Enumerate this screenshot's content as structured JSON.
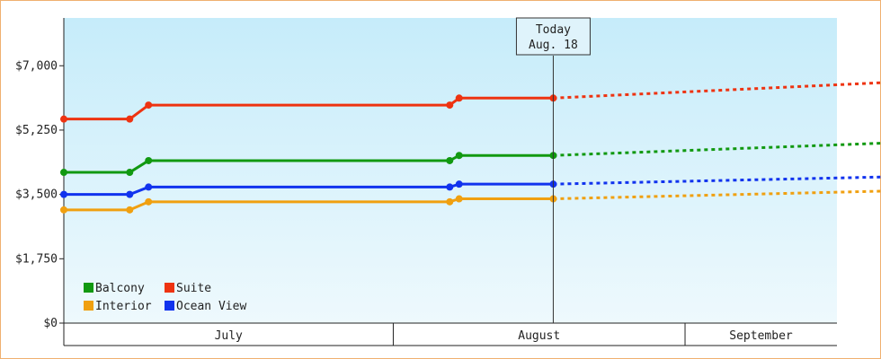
{
  "chart_data": {
    "type": "line",
    "title": "",
    "xlabel": "",
    "ylabel": "",
    "ylim": [
      0,
      8300
    ],
    "y_ticks": [
      0,
      1750,
      3500,
      5250,
      7000
    ],
    "y_tick_labels": [
      "$0",
      "$1,750",
      "$3,500",
      "$5,250",
      "$7,000"
    ],
    "months": [
      "July",
      "August",
      "September"
    ],
    "today": {
      "line1": "Today",
      "line2": "Aug. 18"
    },
    "legend_placement": "bottom-left",
    "grid": false,
    "series": [
      {
        "name": "Balcony",
        "color": "#119911",
        "actual": [
          {
            "x": "2024-06-27",
            "y": 4100
          },
          {
            "x": "2024-07-04",
            "y": 4100
          },
          {
            "x": "2024-07-06",
            "y": 4420
          },
          {
            "x": "2024-08-07",
            "y": 4420
          },
          {
            "x": "2024-08-08",
            "y": 4560
          },
          {
            "x": "2024-08-18",
            "y": 4560
          }
        ],
        "forecast": [
          {
            "x": "2024-08-18",
            "y": 4560
          },
          {
            "x": "2024-10-02",
            "y": 4990
          }
        ]
      },
      {
        "name": "Suite",
        "color": "#ee3311",
        "actual": [
          {
            "x": "2024-06-27",
            "y": 5550
          },
          {
            "x": "2024-07-04",
            "y": 5550
          },
          {
            "x": "2024-07-06",
            "y": 5930
          },
          {
            "x": "2024-08-07",
            "y": 5930
          },
          {
            "x": "2024-08-08",
            "y": 6120
          },
          {
            "x": "2024-08-18",
            "y": 6120
          }
        ],
        "forecast": [
          {
            "x": "2024-08-18",
            "y": 6120
          },
          {
            "x": "2024-10-02",
            "y": 6660
          }
        ]
      },
      {
        "name": "Interior",
        "color": "#f0a010",
        "actual": [
          {
            "x": "2024-06-27",
            "y": 3080
          },
          {
            "x": "2024-07-04",
            "y": 3080
          },
          {
            "x": "2024-07-06",
            "y": 3300
          },
          {
            "x": "2024-08-07",
            "y": 3300
          },
          {
            "x": "2024-08-08",
            "y": 3380
          },
          {
            "x": "2024-08-18",
            "y": 3380
          }
        ],
        "forecast": [
          {
            "x": "2024-08-18",
            "y": 3380
          },
          {
            "x": "2024-10-02",
            "y": 3650
          }
        ]
      },
      {
        "name": "Ocean View",
        "color": "#1133ee",
        "actual": [
          {
            "x": "2024-06-27",
            "y": 3500
          },
          {
            "x": "2024-07-04",
            "y": 3500
          },
          {
            "x": "2024-07-06",
            "y": 3700
          },
          {
            "x": "2024-08-07",
            "y": 3700
          },
          {
            "x": "2024-08-08",
            "y": 3780
          },
          {
            "x": "2024-08-18",
            "y": 3780
          }
        ],
        "forecast": [
          {
            "x": "2024-08-18",
            "y": 3780
          },
          {
            "x": "2024-10-02",
            "y": 4030
          }
        ]
      }
    ]
  }
}
